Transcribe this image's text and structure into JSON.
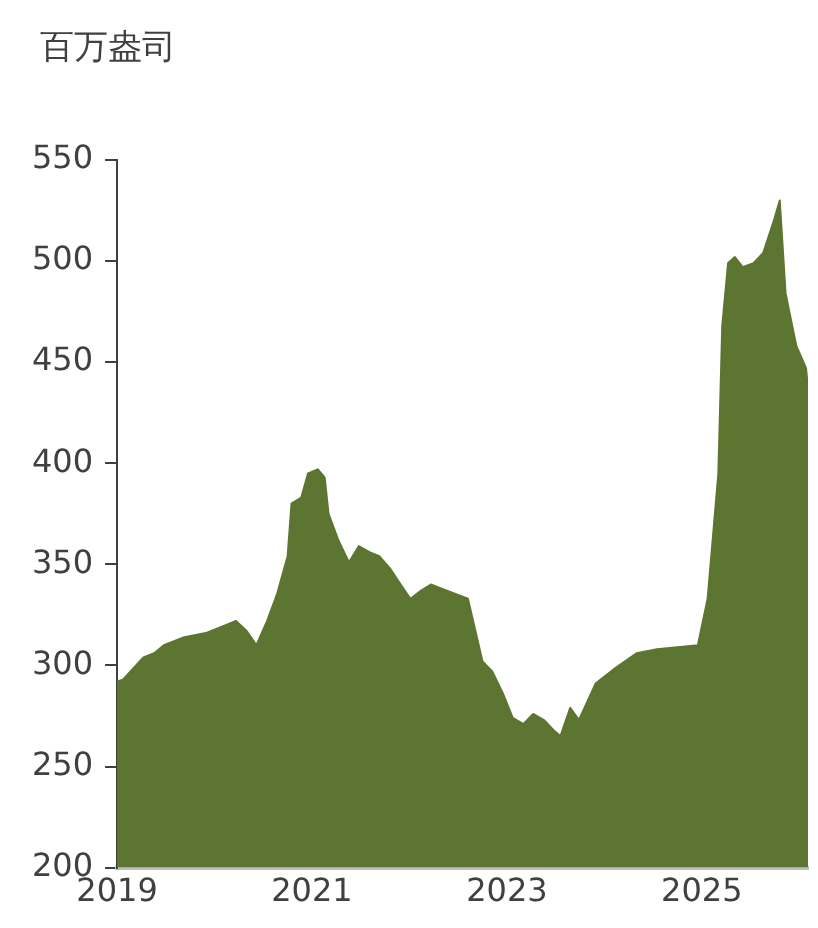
{
  "chart_data": {
    "type": "area",
    "ylabel": "百万盎司",
    "x": [
      2019.0,
      2019.06,
      2019.27,
      2019.38,
      2019.48,
      2019.69,
      2019.91,
      2020.12,
      2020.22,
      2020.33,
      2020.43,
      2020.54,
      2020.64,
      2020.75,
      2020.79,
      2020.89,
      2020.96,
      2021.06,
      2021.13,
      2021.17,
      2021.27,
      2021.38,
      2021.48,
      2021.59,
      2021.69,
      2021.8,
      2021.91,
      2022.01,
      2022.12,
      2022.22,
      2022.33,
      2022.6,
      2022.75,
      2022.85,
      2022.96,
      2023.06,
      2023.17,
      2023.27,
      2023.38,
      2023.48,
      2023.55,
      2023.65,
      2023.74,
      2023.91,
      2024.12,
      2024.33,
      2024.54,
      2024.96,
      2025.06,
      2025.17,
      2025.21,
      2025.27,
      2025.34,
      2025.42,
      2025.53,
      2025.63,
      2025.74,
      2025.8,
      2025.86,
      2025.97,
      2026.07,
      2026.09
    ],
    "series": [
      {
        "color": "#5c7530",
        "values": [
          292,
          293,
          304,
          306,
          310,
          314,
          316,
          320,
          322,
          317,
          310,
          322,
          335,
          354,
          380,
          383,
          395,
          397,
          393,
          375,
          362,
          351,
          359,
          356,
          354,
          348,
          340,
          333,
          337,
          340,
          338,
          333,
          302,
          297,
          286,
          274,
          271,
          276,
          273,
          268,
          265,
          279,
          273,
          291,
          299,
          306,
          308,
          310,
          333,
          395,
          468,
          499,
          502,
          497,
          499,
          504,
          520,
          530,
          484,
          458,
          447,
          437
        ]
      }
    ],
    "xlim": [
      2019,
      2026.09
    ],
    "xticks": [
      2019,
      2021,
      2023,
      2025
    ],
    "ylim": [
      200,
      550
    ],
    "yticks": [
      200,
      250,
      300,
      350,
      400,
      450,
      500,
      550
    ],
    "grid": false,
    "legend": false
  }
}
